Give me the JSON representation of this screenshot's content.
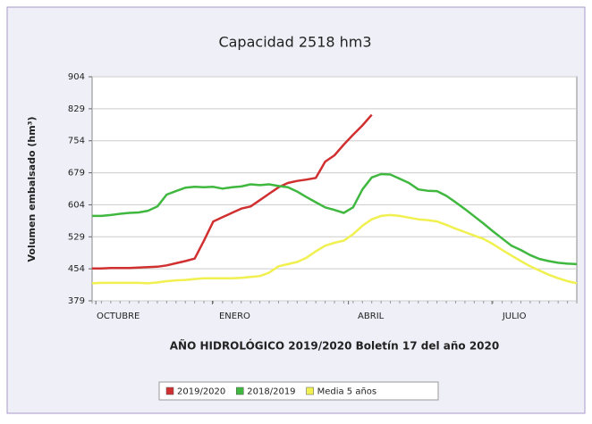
{
  "chart_data": {
    "type": "line",
    "title": "Capacidad 2518 hm3",
    "ylabel": "Volumen embalsado (hm³)",
    "xlabel": "AÑO HIDROLÓGICO 2019/2020 Boletín 17 del año 2020",
    "x": [
      0,
      1,
      2,
      3,
      4,
      5,
      6,
      7,
      8,
      9,
      10,
      11,
      12,
      13,
      14,
      15,
      16,
      17,
      18,
      19,
      20,
      21,
      22,
      23,
      24,
      25,
      26,
      27,
      28,
      29,
      30,
      31,
      32,
      33,
      34,
      35,
      36,
      37,
      38,
      39,
      40,
      41,
      42,
      43,
      44,
      45,
      46,
      47,
      48,
      49,
      50,
      51,
      52
    ],
    "xlim": [
      0,
      52
    ],
    "xticks": [
      {
        "value": 0.4,
        "label": "OCTUBRE"
      },
      {
        "value": 12.9,
        "label": "ENERO"
      },
      {
        "value": 27.5,
        "label": "ABRIL"
      },
      {
        "value": 42.9,
        "label": "JULIO"
      }
    ],
    "ylim": [
      379,
      904
    ],
    "yticks": [
      379,
      454,
      529,
      604,
      679,
      754,
      829,
      904
    ],
    "grid": true,
    "legend": "bottom",
    "series": [
      {
        "name": "2019/2020",
        "color": "#d03030",
        "values": [
          455,
          455,
          456,
          456,
          456,
          457,
          458,
          459,
          462,
          467,
          472,
          478,
          520,
          565,
          575,
          585,
          595,
          600,
          615,
          630,
          645,
          655,
          660,
          663,
          667,
          705,
          720,
          745,
          768,
          790,
          815,
          null,
          null,
          null,
          null,
          null,
          null,
          null,
          null,
          null,
          null,
          null,
          null,
          null,
          null,
          null,
          null,
          null,
          null,
          null,
          null,
          null,
          null
        ]
      },
      {
        "name": "2018/2019",
        "color": "#40b840",
        "values": [
          578,
          578,
          580,
          583,
          585,
          586,
          590,
          600,
          628,
          636,
          644,
          646,
          645,
          646,
          642,
          645,
          647,
          652,
          650,
          652,
          648,
          645,
          635,
          622,
          610,
          598,
          592,
          585,
          598,
          640,
          668,
          676,
          675,
          665,
          655,
          640,
          637,
          636,
          625,
          610,
          594,
          577,
          560,
          542,
          525,
          508,
          498,
          486,
          477,
          472,
          468,
          466,
          465
        ]
      },
      {
        "name": "Media 5 años",
        "color": "#f0f050",
        "values": [
          420,
          421,
          421,
          421,
          421,
          421,
          420,
          422,
          425,
          427,
          428,
          430,
          432,
          432,
          432,
          432,
          433,
          435,
          437,
          445,
          460,
          465,
          470,
          480,
          495,
          508,
          515,
          520,
          535,
          555,
          570,
          578,
          580,
          578,
          574,
          570,
          568,
          565,
          557,
          548,
          540,
          532,
          524,
          512,
          498,
          485,
          472,
          460,
          450,
          440,
          432,
          425,
          420
        ]
      }
    ]
  }
}
